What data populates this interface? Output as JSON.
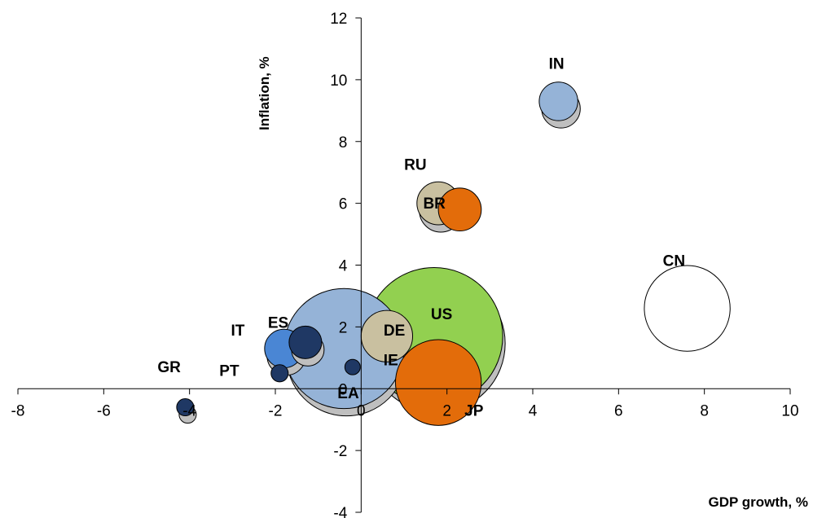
{
  "chart_data": {
    "type": "scatter",
    "subtype": "bubble",
    "title": "",
    "xlabel": "GDP growth, %",
    "ylabel": "Inflation, %",
    "xlim": [
      -8,
      10
    ],
    "ylim": [
      -4,
      12
    ],
    "x_ticks": [
      -8,
      -6,
      -4,
      -2,
      0,
      2,
      4,
      6,
      8,
      10
    ],
    "y_ticks": [
      -4,
      -2,
      0,
      2,
      4,
      6,
      8,
      10,
      12
    ],
    "grid": false,
    "legend": "none",
    "colors": {
      "light_blue": "#95b3d7",
      "gray": "#bfbfbf",
      "tan": "#c9c0a0",
      "orange": "#e36c0a",
      "green": "#92d050",
      "navy": "#1f3864",
      "mid_blue": "#4a86d4",
      "white": "#ffffff"
    },
    "points": [
      {
        "label": "CN",
        "x": 7.6,
        "y": 2.6,
        "r": 1.0,
        "color": "white",
        "shadow": false
      },
      {
        "label": "IN",
        "x": 4.6,
        "y": 9.3,
        "r": 0.45,
        "color": "light_blue",
        "shadow": true
      },
      {
        "label": "RU",
        "x": 1.8,
        "y": 6.0,
        "r": 0.5,
        "color": "tan",
        "shadow": true
      },
      {
        "label": "BR",
        "x": 2.3,
        "y": 5.8,
        "r": 0.5,
        "color": "orange",
        "shadow": false
      },
      {
        "label": "EA",
        "x": -0.4,
        "y": 1.3,
        "r": 1.4,
        "color": "light_blue",
        "shadow": true
      },
      {
        "label": "DE",
        "x": 0.6,
        "y": 1.7,
        "r": 0.6,
        "color": "tan",
        "shadow": false
      },
      {
        "label": "US",
        "x": 1.7,
        "y": 1.7,
        "r": 1.6,
        "color": "green",
        "shadow": true
      },
      {
        "label": "JP",
        "x": 1.8,
        "y": 0.2,
        "r": 1.0,
        "color": "orange",
        "shadow": false
      },
      {
        "label": "IE",
        "x": -0.2,
        "y": 0.7,
        "r": 0.18,
        "color": "navy",
        "shadow": false
      },
      {
        "label": "ES",
        "x": -1.3,
        "y": 1.5,
        "r": 0.38,
        "color": "navy",
        "shadow": true
      },
      {
        "label": "IT",
        "x": -1.8,
        "y": 1.3,
        "r": 0.45,
        "color": "mid_blue",
        "shadow": true
      },
      {
        "label": "PT",
        "x": -1.9,
        "y": 0.5,
        "r": 0.2,
        "color": "navy",
        "shadow": false
      },
      {
        "label": "GR",
        "x": -4.1,
        "y": -0.6,
        "r": 0.2,
        "color": "navy",
        "shadow": true
      }
    ]
  }
}
